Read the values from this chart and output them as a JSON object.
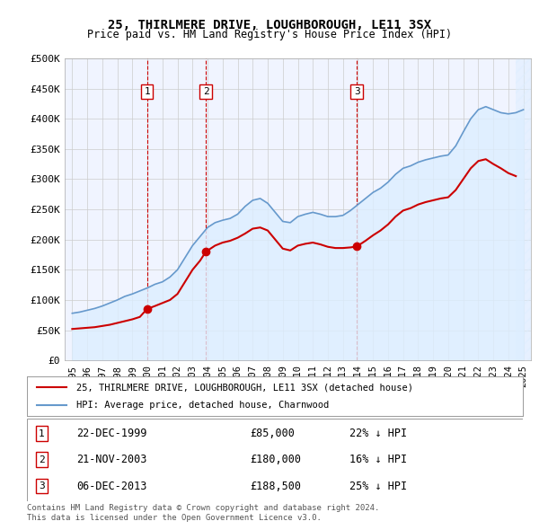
{
  "title": "25, THIRLMERE DRIVE, LOUGHBOROUGH, LE11 3SX",
  "subtitle": "Price paid vs. HM Land Registry's House Price Index (HPI)",
  "xlabel": "",
  "ylabel": "",
  "ylim": [
    0,
    500000
  ],
  "yticks": [
    0,
    50000,
    100000,
    150000,
    200000,
    250000,
    300000,
    350000,
    400000,
    450000,
    500000
  ],
  "ytick_labels": [
    "£0",
    "£50K",
    "£100K",
    "£150K",
    "£200K",
    "£250K",
    "£300K",
    "£350K",
    "£400K",
    "£450K",
    "£500K"
  ],
  "xlim_start": 1994.5,
  "xlim_end": 2025.5,
  "xticks": [
    1995,
    1996,
    1997,
    1998,
    1999,
    2000,
    2001,
    2002,
    2003,
    2004,
    2005,
    2006,
    2007,
    2008,
    2009,
    2010,
    2011,
    2012,
    2013,
    2014,
    2015,
    2016,
    2017,
    2018,
    2019,
    2020,
    2021,
    2022,
    2023,
    2024,
    2025
  ],
  "sale_dates": [
    1999.97,
    2003.89,
    2013.92
  ],
  "sale_prices": [
    85000,
    180000,
    188500
  ],
  "sale_labels": [
    "1",
    "2",
    "3"
  ],
  "house_color": "#cc0000",
  "hpi_color": "#6699cc",
  "hpi_fill_color": "#ddeeff",
  "sale_marker_color": "#cc0000",
  "vline_color": "#cc0000",
  "legend_house": "25, THIRLMERE DRIVE, LOUGHBOROUGH, LE11 3SX (detached house)",
  "legend_hpi": "HPI: Average price, detached house, Charnwood",
  "table_entries": [
    {
      "num": "1",
      "date": "22-DEC-1999",
      "price": "£85,000",
      "note": "22% ↓ HPI"
    },
    {
      "num": "2",
      "date": "21-NOV-2003",
      "price": "£180,000",
      "note": "16% ↓ HPI"
    },
    {
      "num": "3",
      "date": "06-DEC-2013",
      "price": "£188,500",
      "note": "25% ↓ HPI"
    }
  ],
  "footnote1": "Contains HM Land Registry data © Crown copyright and database right 2024.",
  "footnote2": "This data is licensed under the Open Government Licence v3.0.",
  "background_color": "#ffffff",
  "plot_bg_color": "#f0f4ff",
  "grid_color": "#cccccc",
  "hatch_color": "#bbccdd"
}
